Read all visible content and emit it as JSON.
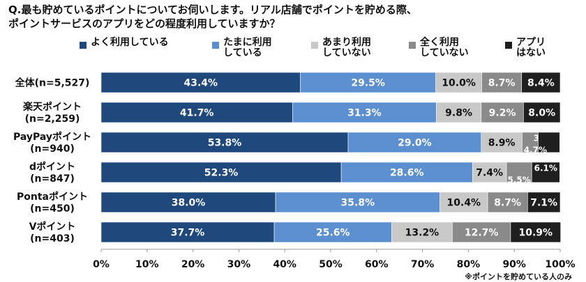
{
  "title_lines": [
    "Q.最も貯めているポイントについてお伺いします。リアル店舗でポイントを貯める際、",
    "ポイントサービスのアプリをどの程度利用していますか？"
  ],
  "note": "※ポイントを貯めている人のみ",
  "chart_data": {
    "type": "bar",
    "orientation": "horizontal",
    "stacked": true,
    "categories": [
      [
        "全体(n=5,527)"
      ],
      [
        "楽天ポイント",
        "(n=2,259)"
      ],
      [
        "PayPayポイント",
        "(n=940)"
      ],
      [
        "dポイント",
        "(n=847)"
      ],
      [
        "Pontaポイント",
        "(n=450)"
      ],
      [
        "Vポイント",
        "(n=403)"
      ]
    ],
    "series": [
      {
        "name": "よく利用している",
        "color": "#1f497d",
        "label_color": "#ffffff",
        "values": [
          43.4,
          41.7,
          53.8,
          52.3,
          38.0,
          37.7
        ]
      },
      {
        "name": "たまに利用\nしている",
        "color": "#5b8fd0",
        "label_color": "#ffffff",
        "values": [
          29.5,
          31.3,
          29.0,
          28.6,
          35.8,
          25.6
        ]
      },
      {
        "name": "あまり利用\nしていない",
        "color": "#c8c8c8",
        "label_color": "#111111",
        "values": [
          10.0,
          9.8,
          8.9,
          7.4,
          10.4,
          13.2
        ]
      },
      {
        "name": "全く利用\nしていない",
        "color": "#8a8a8a",
        "label_color": "#ffffff",
        "values": [
          8.7,
          9.2,
          3.5,
          5.5,
          8.7,
          12.7
        ]
      },
      {
        "name": "アプリ\nはない",
        "color": "#1f1f1f",
        "label_color": "#ffffff",
        "values": [
          8.4,
          8.0,
          4.7,
          6.1,
          7.1,
          10.9
        ]
      }
    ],
    "data_labels": [
      [
        "43.4%",
        "29.5%",
        "10.0%",
        "8.7%",
        "8.4%"
      ],
      [
        "41.7%",
        "31.3%",
        "9.8%",
        "9.2%",
        "8.0%"
      ],
      [
        "53.8%",
        "29.0%",
        "8.9%",
        "3.5%",
        "4.7%"
      ],
      [
        "52.3%",
        "28.6%",
        "7.4%",
        "5.5%",
        "6.1%"
      ],
      [
        "38.0%",
        "35.8%",
        "10.4%",
        "8.7%",
        "7.1%"
      ],
      [
        "37.7%",
        "25.6%",
        "13.2%",
        "12.7%",
        "10.9%"
      ]
    ],
    "x_ticks": [
      "0%",
      "10%",
      "20%",
      "30%",
      "40%",
      "50%",
      "60%",
      "70%",
      "80%",
      "90%",
      "100%"
    ],
    "xlim": [
      0,
      100
    ],
    "grid": false,
    "legend_position": "top"
  }
}
